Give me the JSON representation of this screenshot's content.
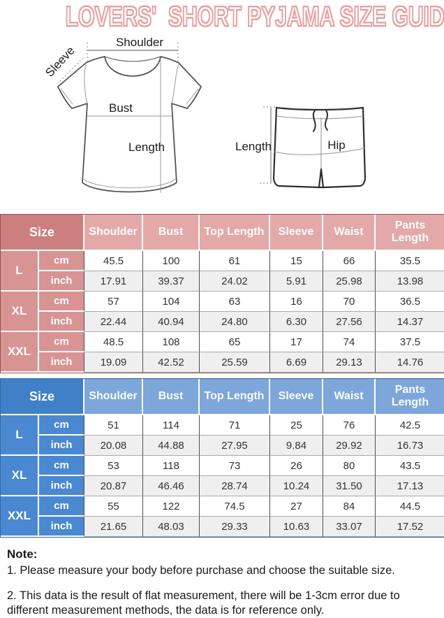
{
  "title": "LOVERS'  SHORT PYJAMA SIZE GUIDE",
  "title_color": "#e79c9c",
  "diagram": {
    "tshirt": {
      "shoulder_label": "Shoulder",
      "sleeve_label": "Sleeve",
      "bust_label": "Bust",
      "length_label": "Length"
    },
    "shorts": {
      "length_label": "Length",
      "hip_label": "Hip"
    }
  },
  "tables": [
    {
      "theme": "pink",
      "accent_colors": {
        "size_cell": "#cd7f7f",
        "header_cells": "#e3a9a9",
        "label_cells": "#d89393"
      },
      "size_header": "Size",
      "columns": [
        "Shoulder",
        "Bust",
        "Top Length",
        "Sleeve",
        "Waist",
        "Pants Length"
      ],
      "rows": [
        {
          "size": "L",
          "units": [
            {
              "unit": "cm",
              "values": [
                "45.5",
                "100",
                "61",
                "15",
                "66",
                "35.5"
              ]
            },
            {
              "unit": "inch",
              "values": [
                "17.91",
                "39.37",
                "24.02",
                "5.91",
                "25.98",
                "13.98"
              ]
            }
          ]
        },
        {
          "size": "XL",
          "units": [
            {
              "unit": "cm",
              "values": [
                "57",
                "104",
                "63",
                "16",
                "70",
                "36.5"
              ]
            },
            {
              "unit": "inch",
              "values": [
                "22.44",
                "40.94",
                "24.80",
                "6.30",
                "27.56",
                "14.37"
              ]
            }
          ]
        },
        {
          "size": "XXL",
          "units": [
            {
              "unit": "cm",
              "values": [
                "48.5",
                "108",
                "65",
                "17",
                "74",
                "37.5"
              ]
            },
            {
              "unit": "inch",
              "values": [
                "19.09",
                "42.52",
                "25.59",
                "6.69",
                "29.13",
                "14.76"
              ]
            }
          ]
        }
      ]
    },
    {
      "theme": "blue",
      "accent_colors": {
        "size_cell": "#4080c8",
        "header_cells": "#7da7da",
        "label_cells": "#4a89d2"
      },
      "size_header": "Size",
      "columns": [
        "Shoulder",
        "Bust",
        "Top Length",
        "Sleeve",
        "Waist",
        "Pants Length"
      ],
      "rows": [
        {
          "size": "L",
          "units": [
            {
              "unit": "cm",
              "values": [
                "51",
                "114",
                "71",
                "25",
                "76",
                "42.5"
              ]
            },
            {
              "unit": "inch",
              "values": [
                "20.08",
                "44.88",
                "27.95",
                "9.84",
                "29.92",
                "16.73"
              ]
            }
          ]
        },
        {
          "size": "XL",
          "units": [
            {
              "unit": "cm",
              "values": [
                "53",
                "118",
                "73",
                "26",
                "80",
                "43.5"
              ]
            },
            {
              "unit": "inch",
              "values": [
                "20.87",
                "46.46",
                "28.74",
                "10.24",
                "31.50",
                "17.13"
              ]
            }
          ]
        },
        {
          "size": "XXL",
          "units": [
            {
              "unit": "cm",
              "values": [
                "55",
                "122",
                "74.5",
                "27",
                "84",
                "44.5"
              ]
            },
            {
              "unit": "inch",
              "values": [
                "21.65",
                "48.03",
                "29.33",
                "10.63",
                "33.07",
                "17.52"
              ]
            }
          ]
        }
      ]
    }
  ],
  "notes": {
    "heading": "Note:",
    "items": [
      "1. Please measure your body before purchase and choose the suitable size.",
      "2. This data is the result of flat measurement, there will be 1-3cm error due to different measurement methods, the data is for reference only."
    ]
  }
}
